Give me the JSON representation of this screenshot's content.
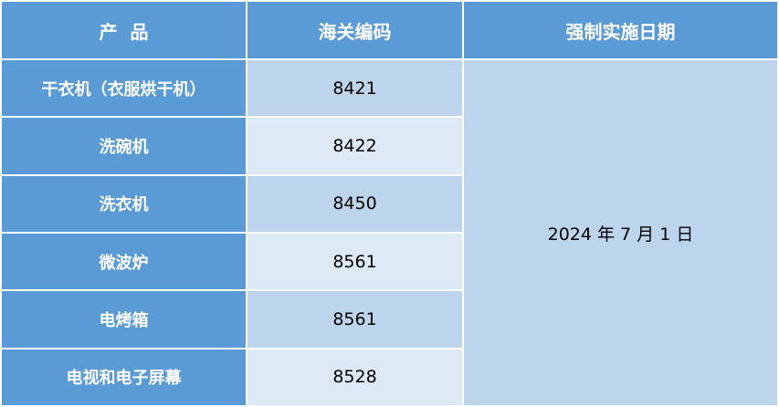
{
  "headers": {
    "product": "产  品",
    "hs_code": "海关编码",
    "date": "强制实施日期"
  },
  "rows": [
    {
      "product": "干衣机（衣服烘干机）",
      "hs_code": "8421"
    },
    {
      "product": "洗碗机",
      "hs_code": "8422"
    },
    {
      "product": "洗衣机",
      "hs_code": "8450"
    },
    {
      "product": "微波炉",
      "hs_code": "8561"
    },
    {
      "product": "电烤箱",
      "hs_code": "8561"
    },
    {
      "product": "电视和电子屏幕",
      "hs_code": "8528"
    }
  ],
  "effective_date": "2024 年 7 月 1 日",
  "colors": {
    "header_bg": "#5b9bd5",
    "cell_dark": "#bdd5ec",
    "cell_light": "#dde9f5"
  }
}
